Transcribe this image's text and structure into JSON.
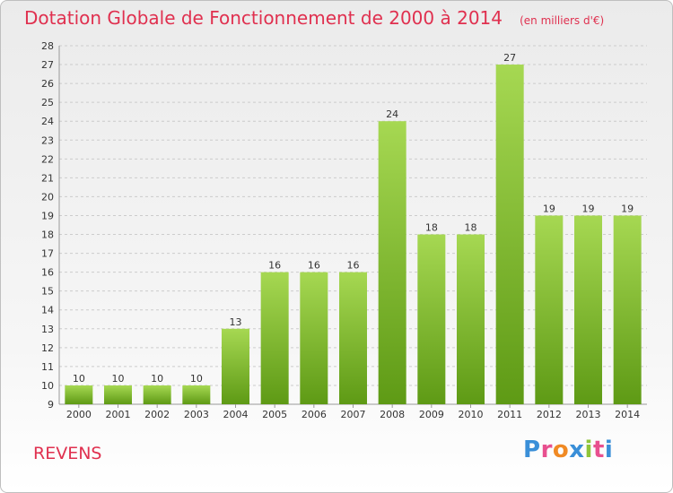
{
  "header": {
    "title": "Dotation Globale de Fonctionnement de 2000 à 2014",
    "subtitle": "(en milliers d'€)"
  },
  "footer": {
    "location": "REVENS",
    "logo_letters": [
      "P",
      "r",
      "o",
      "x",
      "i",
      "t",
      "i"
    ],
    "logo_colors": [
      "#3a8fd8",
      "#e8508f",
      "#f08a24",
      "#3a8fd8",
      "#8fc53a",
      "#e8508f",
      "#3a8fd8"
    ]
  },
  "colors": {
    "title": "#e0304f",
    "bar_top": "#a6d852",
    "bar_bottom": "#5e9a15",
    "grid": "#cccccc",
    "axis": "#999999"
  },
  "chart_data": {
    "type": "bar",
    "categories": [
      "2000",
      "2001",
      "2002",
      "2003",
      "2004",
      "2005",
      "2006",
      "2007",
      "2008",
      "2009",
      "2010",
      "2011",
      "2012",
      "2013",
      "2014"
    ],
    "values": [
      10,
      10,
      10,
      10,
      13,
      16,
      16,
      16,
      24,
      18,
      18,
      27,
      19,
      19,
      19
    ],
    "ylim": [
      9,
      28
    ],
    "yticks": [
      9,
      10,
      11,
      12,
      13,
      14,
      15,
      16,
      17,
      18,
      19,
      20,
      21,
      22,
      23,
      24,
      25,
      26,
      27,
      28
    ],
    "grid": true,
    "title": "Dotation Globale de Fonctionnement de 2000 à 2014",
    "xlabel": "",
    "ylabel": ""
  }
}
